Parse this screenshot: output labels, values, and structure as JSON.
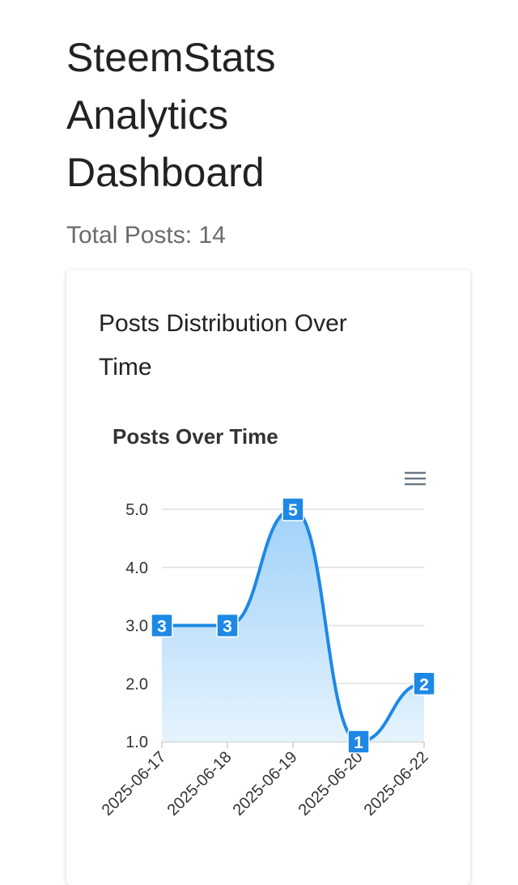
{
  "header": {
    "title": "SteemStats Analytics Dashboard",
    "total_posts": "Total Posts: 14"
  },
  "card": {
    "title": "Posts Distribution Over Time"
  },
  "chart_data": {
    "type": "area",
    "title": "Posts Over Time",
    "categories": [
      "2025-06-17",
      "2025-06-18",
      "2025-06-19",
      "2025-06-20",
      "2025-06-22"
    ],
    "values": [
      3,
      3,
      5,
      1,
      2
    ],
    "color": "#1e88e5",
    "ylim": [
      1,
      5
    ],
    "yticks": [
      {
        "value": 1,
        "label": "1.0"
      },
      {
        "value": 2,
        "label": "2.0"
      },
      {
        "value": 3,
        "label": "3.0"
      },
      {
        "value": 4,
        "label": "4.0"
      },
      {
        "value": 5,
        "label": "5.0"
      }
    ],
    "grid": true
  }
}
